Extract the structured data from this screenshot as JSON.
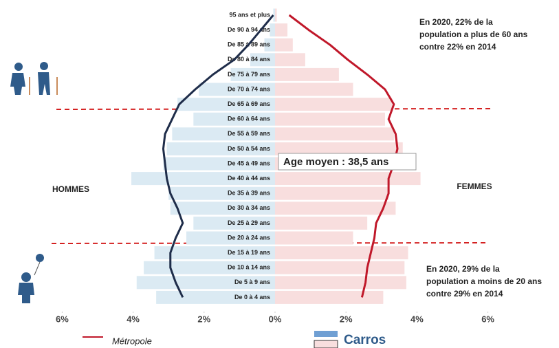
{
  "chart_data": {
    "type": "pyramid",
    "categories": [
      "95 ans et plus",
      "De 90 à 94 ans",
      "De 85 à 89 ans",
      "De 80 à 84 ans",
      "De 75 à 79 ans",
      "De 70 à 74 ans",
      "De 65 à 69 ans",
      "De 60 à 64 ans",
      "De 55 à 59 ans",
      "De 50 à 54 ans",
      "De 45 à 49 ans",
      "De 40 à 44 ans",
      "De 35 à 39 ans",
      "De 30 à 34 ans",
      "De 25 à 29 ans",
      "De 20 à 24 ans",
      "De 15 à 19 ans",
      "De 10 à 14 ans",
      "De 5 à 9 ans",
      "De 0 à 4 ans"
    ],
    "series": [
      {
        "name": "Carros",
        "color_men": "#dbeaf3",
        "color_women": "#f8dede",
        "men": [
          0.05,
          0.15,
          0.3,
          0.7,
          1.25,
          2.15,
          2.75,
          2.3,
          2.9,
          3.05,
          3.15,
          4.05,
          3.0,
          2.95,
          2.3,
          2.5,
          3.4,
          3.7,
          3.9,
          3.35
        ],
        "women": [
          0.05,
          0.35,
          0.5,
          0.85,
          1.8,
          2.2,
          3.3,
          3.1,
          3.35,
          3.6,
          3.7,
          4.1,
          3.2,
          3.4,
          2.6,
          2.2,
          3.75,
          3.65,
          3.7,
          3.05
        ]
      },
      {
        "name": "Métropole",
        "color_men": "#1f2d4a",
        "color_women": "#c0182a",
        "men": [
          0.05,
          0.4,
          0.75,
          1.15,
          1.75,
          2.25,
          2.7,
          2.9,
          3.1,
          3.15,
          3.1,
          3.05,
          2.95,
          2.75,
          2.6,
          2.8,
          2.95,
          2.95,
          2.8,
          2.6
        ],
        "women": [
          0.4,
          0.95,
          1.55,
          2.05,
          2.6,
          3.1,
          3.35,
          3.2,
          3.4,
          3.45,
          3.35,
          3.2,
          3.2,
          3.05,
          2.85,
          2.8,
          2.7,
          2.6,
          2.55,
          2.45
        ]
      }
    ],
    "xlim": [
      -6.25,
      6.25
    ],
    "xticks": [
      {
        "value": -6,
        "label": "6%"
      },
      {
        "value": -4,
        "label": "4%"
      },
      {
        "value": -2,
        "label": "2%"
      },
      {
        "value": 0,
        "label": "0%"
      },
      {
        "value": 2,
        "label": "2%"
      },
      {
        "value": 4,
        "label": "4%"
      },
      {
        "value": 6,
        "label": "6%"
      }
    ],
    "men_label": "HOMMES",
    "women_label": "FEMMES",
    "mean_age": "Age moyen : 38,5 ans",
    "annotations": [
      [
        "En 2020,  22% de la",
        "population a plus de 60 ans",
        "contre 22% en 2014"
      ],
      [
        "En 2020, 29% de la",
        "population a moins de 20 ans",
        "contre 29% en 2014"
      ]
    ]
  }
}
